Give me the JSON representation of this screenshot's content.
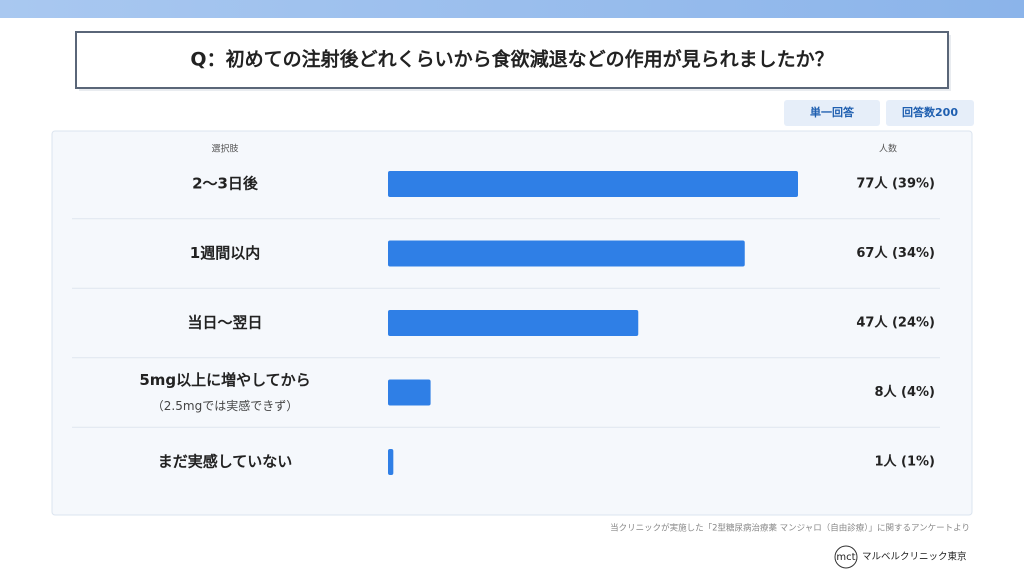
{
  "chart_data": {
    "type": "bar",
    "orientation": "horizontal",
    "title": "Q：初めての注射後どれくらいから食欲減退などの作用が見られましたか？",
    "tags": [
      "単一回答",
      "回答数200"
    ],
    "category_header": "選択肢",
    "value_header": "人数",
    "categories": [
      "2〜3日後",
      "1週間以内",
      "当日〜翌日",
      "5mg以上に増やしてから",
      "まだ実感していない"
    ],
    "category_notes": [
      null,
      null,
      null,
      "（2.5mgでは実感できず）",
      null
    ],
    "values": [
      77,
      67,
      47,
      8,
      1
    ],
    "value_labels": [
      "77人 (39%)",
      "67人 (34%)",
      "47人 (24%)",
      "8人 (4%)",
      "1人 (1%)"
    ],
    "color": "#2f7fe6",
    "source": "当クリニックが実施した「2型糖尿病治療薬 マンジャロ（自由診療）」に関するアンケートより",
    "logo_mark": "mct",
    "logo_text": "マルベルクリニック東京"
  }
}
